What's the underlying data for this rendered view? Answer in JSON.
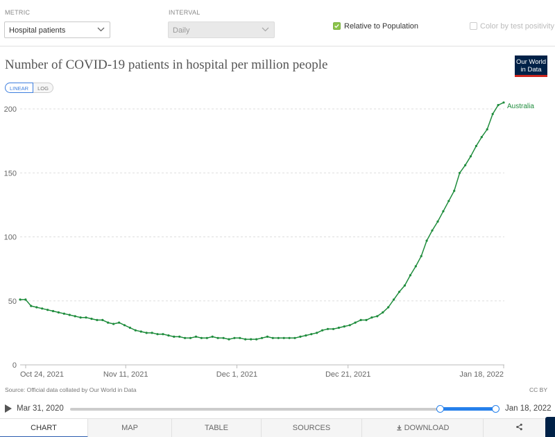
{
  "controls": {
    "metric_label": "METRIC",
    "metric_value": "Hospital patients",
    "interval_label": "INTERVAL",
    "interval_value": "Daily",
    "relative_label": "Relative to Population",
    "relative_checked": true,
    "color_by_label": "Color by test positivity",
    "color_by_checked": false
  },
  "logo_text": [
    "Our World",
    "in Data"
  ],
  "scale": {
    "linear": "LINEAR",
    "log": "LOG",
    "selected": "linear"
  },
  "chart_data": {
    "type": "line",
    "title": "Number of COVID-19 patients in hospital per million people",
    "xlabel": "",
    "ylabel": "",
    "ylim": [
      0,
      200
    ],
    "y_ticks": [
      0,
      50,
      100,
      150,
      200
    ],
    "x_ticks": [
      "Oct 24, 2021",
      "Nov 11, 2021",
      "Dec 1, 2021",
      "Dec 21, 2021",
      "Jan 18, 2022"
    ],
    "x_tick_dates": [
      "2021-10-24",
      "2021-11-11",
      "2021-12-01",
      "2021-12-21",
      "2022-01-18"
    ],
    "grid": "horizontal dashed",
    "series": [
      {
        "name": "Australia",
        "color": "#1e8c3c",
        "x_start": "2021-10-23",
        "x_end": "2022-01-18",
        "values": [
          51,
          51,
          46,
          45,
          44,
          43,
          42,
          41,
          40,
          39,
          38,
          37,
          37,
          36,
          35,
          35,
          33,
          32,
          33,
          31,
          29,
          27,
          26,
          25,
          25,
          24,
          24,
          23,
          22,
          22,
          21,
          21,
          22,
          21,
          21,
          22,
          21,
          21,
          20,
          21,
          21,
          20,
          20,
          20,
          21,
          22,
          21,
          21,
          21,
          21,
          21,
          22,
          23,
          24,
          25,
          27,
          28,
          28,
          29,
          30,
          31,
          33,
          35,
          35,
          37,
          38,
          41,
          45,
          51,
          57,
          62,
          70,
          77,
          85,
          97,
          105,
          112,
          120,
          128,
          136,
          150,
          156,
          163,
          171,
          178,
          184,
          196,
          203,
          205
        ]
      }
    ]
  },
  "source": "Source: Official data collated by Our World in Data",
  "license": "CC BY",
  "timeline": {
    "start": "Mar 31, 2020",
    "end": "Jan 18, 2022"
  },
  "tabs": [
    "CHART",
    "MAP",
    "TABLE",
    "SOURCES",
    "DOWNLOAD"
  ],
  "active_tab": "CHART",
  "share_glyph": "⋖"
}
